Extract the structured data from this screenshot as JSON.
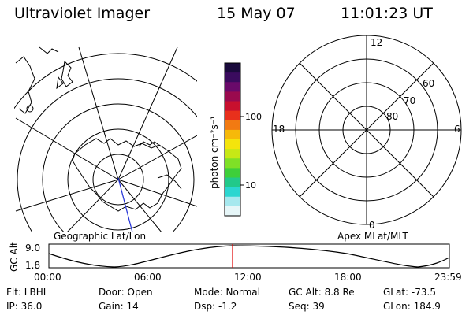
{
  "header": {
    "title": "Ultraviolet Imager",
    "date": "15 May 07",
    "time": "11:01:23 UT"
  },
  "colorbar": {
    "unit_label": "photon cm⁻²s⁻¹",
    "ticks": [
      "100",
      "10"
    ],
    "colors": [
      "#1a0a3c",
      "#3a0b5e",
      "#6a0a6a",
      "#9a0a4e",
      "#c8102e",
      "#e8301c",
      "#f27a12",
      "#f6b90a",
      "#f4e40c",
      "#c6e816",
      "#7fe026",
      "#3ecf3a",
      "#22c98a",
      "#2bd6d0",
      "#a6e8ee",
      "#e6f6f8"
    ]
  },
  "geo_map": {
    "label": "Geographic Lat/Lon"
  },
  "polar_plot": {
    "label": "Apex MLat/MLT",
    "mlt_labels": {
      "top": "12",
      "left": "18",
      "right": "6",
      "bottom": "0"
    },
    "lat_labels": [
      "60",
      "70",
      "80"
    ]
  },
  "altitude_plot": {
    "ylabel": "GC Alt",
    "y_ticks": [
      "9.0",
      "1.8"
    ],
    "x_ticks": [
      "00:00",
      "06:00",
      "12:00",
      "18:00",
      "23:59"
    ],
    "marker_color": "#e00000"
  },
  "footer": {
    "row1": [
      "Flt: LBHL",
      "Door: Open",
      "Mode: Normal",
      "GC Alt: 8.8 Re",
      "GLat: -73.5"
    ],
    "row2": [
      "IP: 36.0",
      "Gain: 14",
      "Dsp: -1.2",
      "Seq: 39",
      "GLon: 184.9"
    ]
  }
}
